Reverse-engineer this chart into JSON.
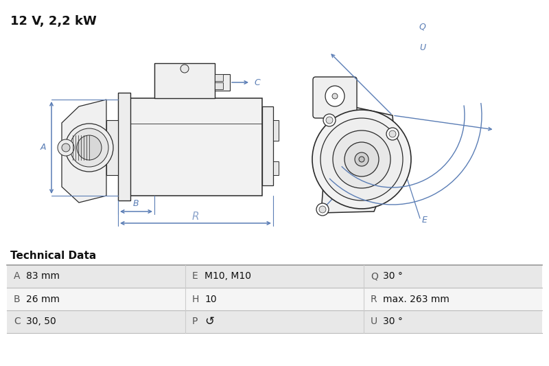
{
  "title": "12 V, 2,2 kW",
  "bg_color": "#ffffff",
  "blue": "#5a7db5",
  "blue_light": "#7090c0",
  "dark": "#1a1a1a",
  "line_color": "#2a2a2a",
  "table_header": "Technical Data",
  "table_rows": [
    [
      [
        "A",
        "83 mm"
      ],
      [
        "E",
        "M10, M10"
      ],
      [
        "Q",
        "30 °"
      ]
    ],
    [
      [
        "B",
        "26 mm"
      ],
      [
        "H",
        "10"
      ],
      [
        "R",
        "max. 263 mm"
      ]
    ],
    [
      [
        "C",
        "30, 50"
      ],
      [
        "P",
        "↺"
      ],
      [
        "U",
        "30 °"
      ]
    ]
  ],
  "row_bg": [
    "#e8e8e8",
    "#f5f5f5",
    "#e8e8e8"
  ]
}
